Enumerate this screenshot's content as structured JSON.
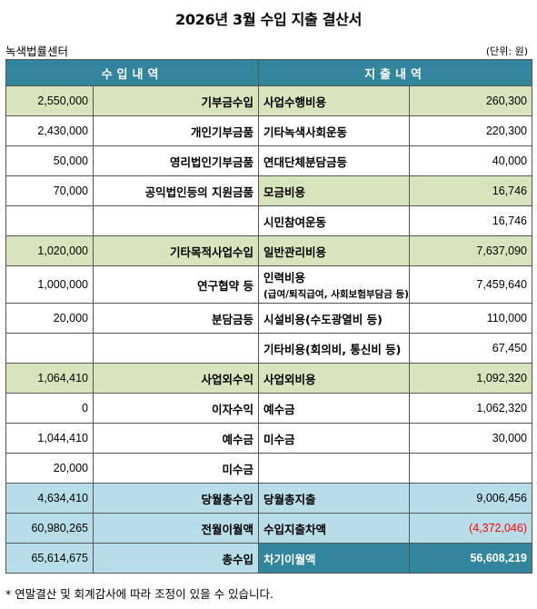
{
  "title": "2026년 3월 수입 지출 결산서",
  "org": "녹색법률센터",
  "unit": "(단위: 원)",
  "headers": {
    "income": "수입내역",
    "expense": "지출내역"
  },
  "rows": [
    {
      "in_amount": "2,550,000",
      "in_label": "기부금수입",
      "out_label": "사업수행비용",
      "out_sub": "",
      "out_amount": "260,300"
    },
    {
      "in_amount": "2,430,000",
      "in_label": "개인기부금품",
      "out_label": "기타녹색사회운동",
      "out_sub": "",
      "out_amount": "220,300"
    },
    {
      "in_amount": "50,000",
      "in_label": "영리법인기부금품",
      "out_label": "연대단체분담금등",
      "out_sub": "",
      "out_amount": "40,000"
    },
    {
      "in_amount": "70,000",
      "in_label": "공익법인등의 지원금품",
      "out_label": "모금비용",
      "out_sub": "",
      "out_amount": "16,746"
    },
    {
      "in_amount": "",
      "in_label": "",
      "out_label": "시민참여운동",
      "out_sub": "",
      "out_amount": "16,746"
    },
    {
      "in_amount": "1,020,000",
      "in_label": "기타목적사업수입",
      "out_label": "일반관리비용",
      "out_sub": "",
      "out_amount": "7,637,090"
    },
    {
      "in_amount": "1,000,000",
      "in_label": "연구협약 등",
      "out_label": "인력비용",
      "out_sub": "(급여/퇴직급여, 사회보험부담금 등)",
      "out_amount": "7,459,640"
    },
    {
      "in_amount": "20,000",
      "in_label": "분담금등",
      "out_label": "시설비용(수도광열비 등)",
      "out_sub": "",
      "out_amount": "110,000"
    },
    {
      "in_amount": "",
      "in_label": "",
      "out_label": "기타비용(회의비, 통신비 등)",
      "out_sub": "",
      "out_amount": "67,450"
    },
    {
      "in_amount": "1,064,410",
      "in_label": "사업외수익",
      "out_label": "사업외비용",
      "out_sub": "",
      "out_amount": "1,092,320"
    },
    {
      "in_amount": "0",
      "in_label": "이자수익",
      "out_label": "예수금",
      "out_sub": "",
      "out_amount": "1,062,320"
    },
    {
      "in_amount": "1,044,410",
      "in_label": "예수금",
      "out_label": "미수금",
      "out_sub": "",
      "out_amount": "30,000"
    },
    {
      "in_amount": "20,000",
      "in_label": "미수금",
      "out_label": "",
      "out_sub": "",
      "out_amount": ""
    },
    {
      "in_amount": "4,634,410",
      "in_label": "당월총수입",
      "out_label": "당월총지출",
      "out_sub": "",
      "out_amount": "9,006,456"
    },
    {
      "in_amount": "60,980,265",
      "in_label": "전월이월액",
      "out_label": "수입지출차액",
      "out_sub": "",
      "out_amount": "(4,372,046)"
    },
    {
      "in_amount": "65,614,675",
      "in_label": "총수입",
      "out_label": "차기이월액",
      "out_sub": "",
      "out_amount": "56,608,219"
    }
  ],
  "colors": {
    "header": "#31859c",
    "category": "#d8e4bc",
    "total": "#b7dee8",
    "negative": "#ff0000"
  },
  "note": "* 연말결산 및 회계감사에 따라 조정이 있을 수 있습니다."
}
